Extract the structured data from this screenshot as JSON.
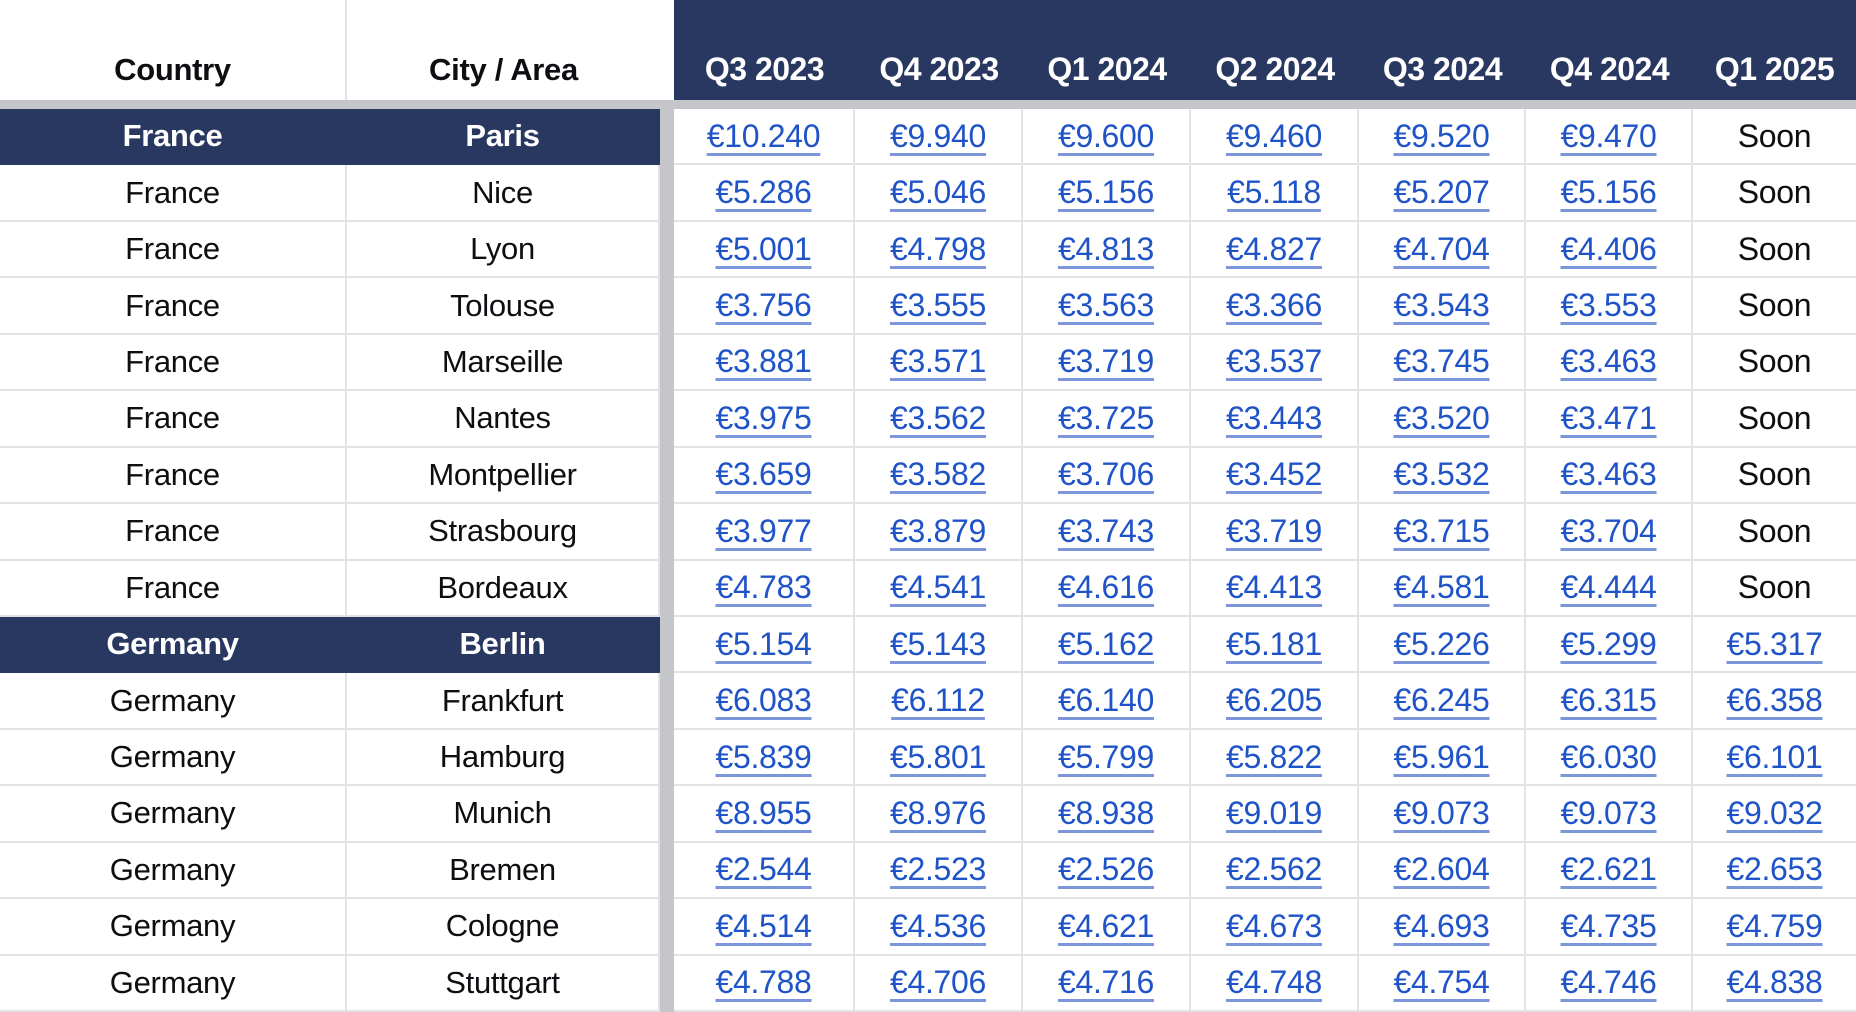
{
  "table": {
    "header": {
      "country": "Country",
      "city": "City / Area",
      "quarters": [
        "Q3 2023",
        "Q4 2023",
        "Q1 2024",
        "Q2 2024",
        "Q3 2024",
        "Q4 2024",
        "Q1 2025"
      ]
    },
    "rows": [
      {
        "country": "France",
        "city": "Paris",
        "highlighted": true,
        "values": [
          "€10.240",
          "€9.940",
          "€9.600",
          "€9.460",
          "€9.520",
          "€9.470",
          "Soon"
        ]
      },
      {
        "country": "France",
        "city": "Nice",
        "highlighted": false,
        "values": [
          "€5.286",
          "€5.046",
          "€5.156",
          "€5.118",
          "€5.207",
          "€5.156",
          "Soon"
        ]
      },
      {
        "country": "France",
        "city": "Lyon",
        "highlighted": false,
        "values": [
          "€5.001",
          "€4.798",
          "€4.813",
          "€4.827",
          "€4.704",
          "€4.406",
          "Soon"
        ]
      },
      {
        "country": "France",
        "city": "Tolouse",
        "highlighted": false,
        "values": [
          "€3.756",
          "€3.555",
          "€3.563",
          "€3.366",
          "€3.543",
          "€3.553",
          "Soon"
        ]
      },
      {
        "country": "France",
        "city": "Marseille",
        "highlighted": false,
        "values": [
          "€3.881",
          "€3.571",
          "€3.719",
          "€3.537",
          "€3.745",
          "€3.463",
          "Soon"
        ]
      },
      {
        "country": "France",
        "city": "Nantes",
        "highlighted": false,
        "values": [
          "€3.975",
          "€3.562",
          "€3.725",
          "€3.443",
          "€3.520",
          "€3.471",
          "Soon"
        ]
      },
      {
        "country": "France",
        "city": "Montpellier",
        "highlighted": false,
        "values": [
          "€3.659",
          "€3.582",
          "€3.706",
          "€3.452",
          "€3.532",
          "€3.463",
          "Soon"
        ]
      },
      {
        "country": "France",
        "city": "Strasbourg",
        "highlighted": false,
        "values": [
          "€3.977",
          "€3.879",
          "€3.743",
          "€3.719",
          "€3.715",
          "€3.704",
          "Soon"
        ]
      },
      {
        "country": "France",
        "city": "Bordeaux",
        "highlighted": false,
        "values": [
          "€4.783",
          "€4.541",
          "€4.616",
          "€4.413",
          "€4.581",
          "€4.444",
          "Soon"
        ]
      },
      {
        "country": "Germany",
        "city": "Berlin",
        "highlighted": true,
        "values": [
          "€5.154",
          "€5.143",
          "€5.162",
          "€5.181",
          "€5.226",
          "€5.299",
          "€5.317"
        ]
      },
      {
        "country": "Germany",
        "city": "Frankfurt",
        "highlighted": false,
        "values": [
          "€6.083",
          "€6.112",
          "€6.140",
          "€6.205",
          "€6.245",
          "€6.315",
          "€6.358"
        ]
      },
      {
        "country": "Germany",
        "city": "Hamburg",
        "highlighted": false,
        "values": [
          "€5.839",
          "€5.801",
          "€5.799",
          "€5.822",
          "€5.961",
          "€6.030",
          "€6.101"
        ]
      },
      {
        "country": "Germany",
        "city": "Munich",
        "highlighted": false,
        "values": [
          "€8.955",
          "€8.976",
          "€8.938",
          "€9.019",
          "€9.073",
          "€9.073",
          "€9.032"
        ]
      },
      {
        "country": "Germany",
        "city": "Bremen",
        "highlighted": false,
        "values": [
          "€2.544",
          "€2.523",
          "€2.526",
          "€2.562",
          "€2.604",
          "€2.621",
          "€2.653"
        ]
      },
      {
        "country": "Germany",
        "city": "Cologne",
        "highlighted": false,
        "values": [
          "€4.514",
          "€4.536",
          "€4.621",
          "€4.673",
          "€4.693",
          "€4.735",
          "€4.759"
        ]
      },
      {
        "country": "Germany",
        "city": "Stuttgart",
        "highlighted": false,
        "values": [
          "€4.788",
          "€4.706",
          "€4.716",
          "€4.748",
          "€4.754",
          "€4.746",
          "€4.838"
        ]
      }
    ]
  },
  "colors": {
    "header_bg": "#293860",
    "highlight_row_bg": "#293860",
    "link_blue": "#1f53c8",
    "freeze_divider_gray": "#c5c6c9",
    "cell_border_gray": "#e2e3e6"
  }
}
